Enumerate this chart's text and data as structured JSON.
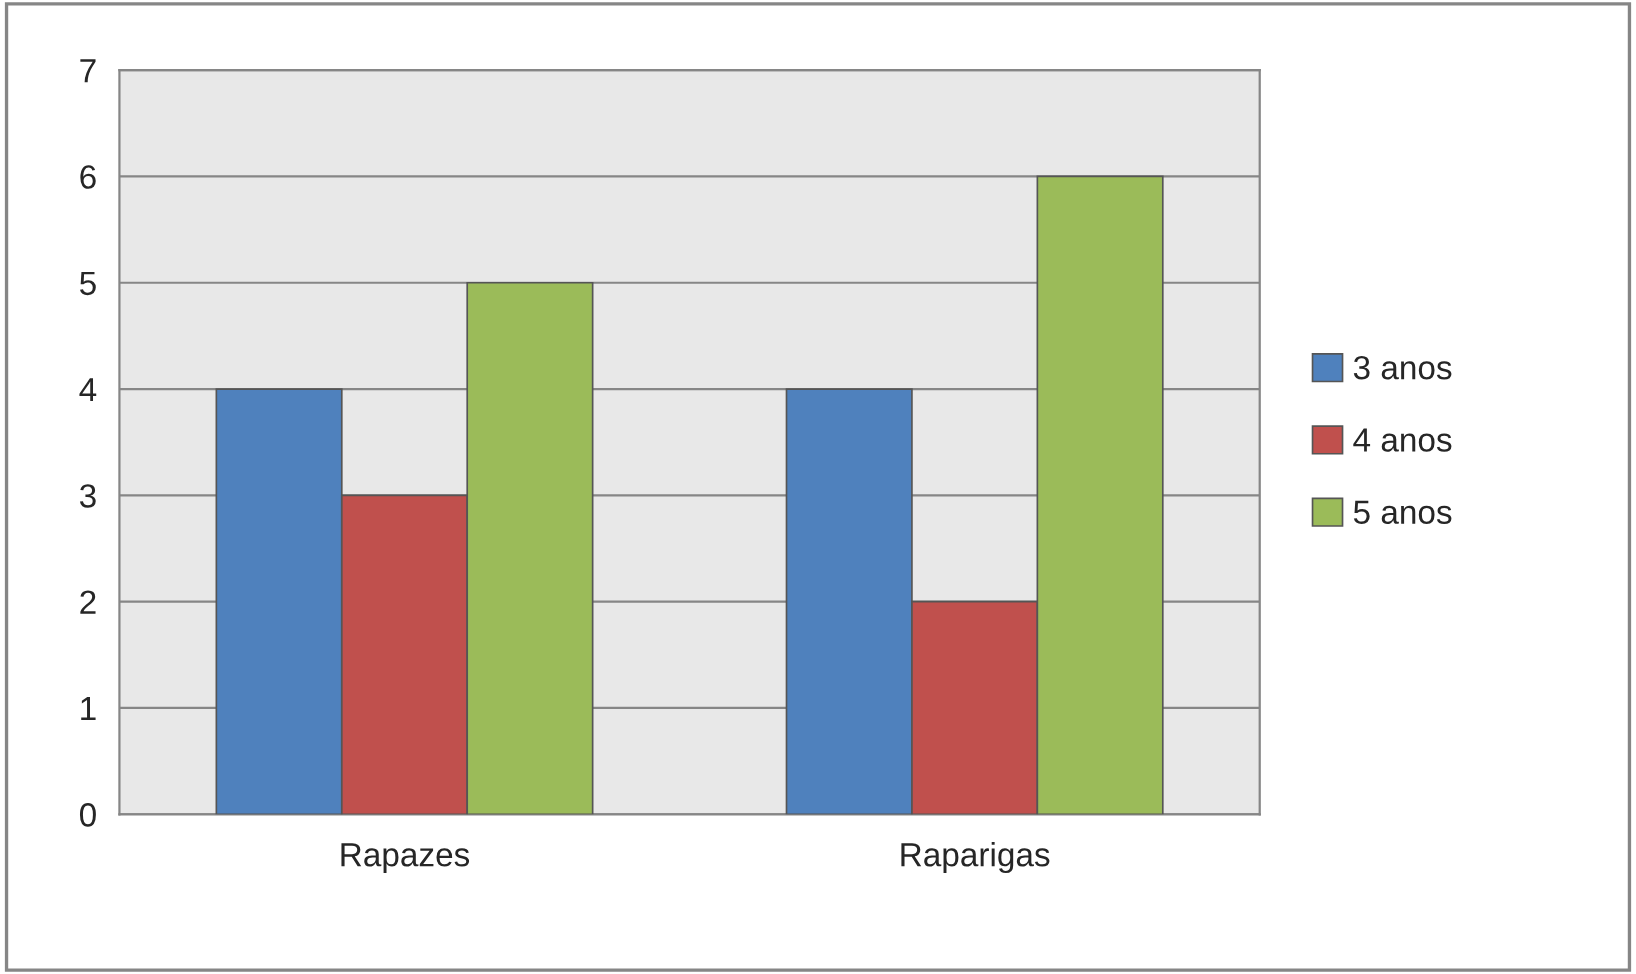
{
  "chart_data": {
    "type": "bar",
    "categories": [
      "Rapazes",
      "Raparigas"
    ],
    "series": [
      {
        "name": "3 anos",
        "color": "#4f81bd",
        "values": [
          4,
          4
        ]
      },
      {
        "name": "4 anos",
        "color": "#c0504d",
        "values": [
          3,
          2
        ]
      },
      {
        "name": "5 anos",
        "color": "#9bbb59",
        "values": [
          5,
          6
        ]
      }
    ],
    "ylim": [
      0,
      7
    ],
    "yticks": [
      0,
      1,
      2,
      3,
      4,
      5,
      6,
      7
    ],
    "grid": "y",
    "legend": "right"
  }
}
